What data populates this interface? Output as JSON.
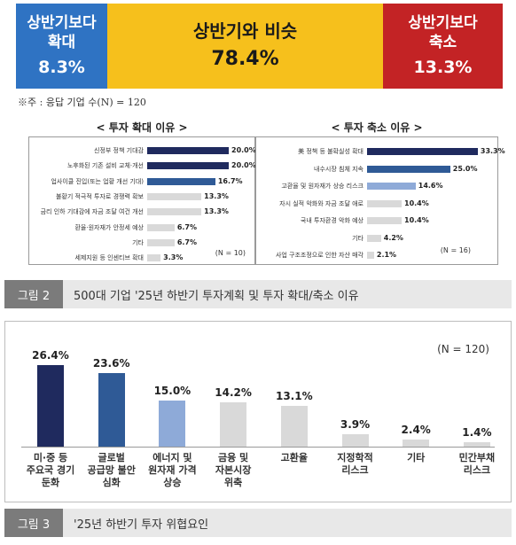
{
  "summary": {
    "segments": [
      {
        "label": "상반기보다\n확대",
        "value": "8.3%",
        "color": "#2f73c3"
      },
      {
        "label": "상반기와 비슷",
        "value": "78.4%",
        "color": "#f6c01c"
      },
      {
        "label": "상반기보다\n축소",
        "value": "13.3%",
        "color": "#c32325"
      }
    ],
    "note": "※주 : 응답 기업 수(N) = 120"
  },
  "chart_data": [
    {
      "type": "bar",
      "orientation": "horizontal",
      "title": "< 투자 확대 이유 >",
      "categories": [
        "신정부 정책 기대감",
        "노후화된 기존 설비 교체·개선",
        "업사이클 진입(또는 업황 개선 기대)",
        "불황기 적극적 투자로 경쟁력 확보",
        "금리 인하 기대감에 자금 조달 여건 개선",
        "환율·원자재가 안정세 예상",
        "기타",
        "세제지원 등 인센티브 확대"
      ],
      "values": [
        20.0,
        20.0,
        16.7,
        13.3,
        13.3,
        6.7,
        6.7,
        3.3
      ],
      "value_labels": [
        "20.0%",
        "20.0%",
        "16.7%",
        "13.3%",
        "13.3%",
        "6.7%",
        "6.7%",
        "3.3%"
      ],
      "colors": [
        "#1f2a5e",
        "#1f2a5e",
        "#2f5a96",
        "#d9d9d9",
        "#d9d9d9",
        "#d9d9d9",
        "#d9d9d9",
        "#d9d9d9"
      ],
      "n_label": "(N = 10)"
    },
    {
      "type": "bar",
      "orientation": "horizontal",
      "title": "< 투자 축소 이유 >",
      "categories": [
        "美 정책 등 불확실성 확대",
        "내수시장 침체 지속",
        "고환율 및 원자재가 상승 리스크",
        "자시 실적 악화와 자금 조달 애로",
        "국내 투자환경 악화 예상",
        "기타",
        "사업 구조조정으로 인한 자산 매각"
      ],
      "values": [
        33.3,
        25.0,
        14.6,
        10.4,
        10.4,
        4.2,
        2.1
      ],
      "value_labels": [
        "33.3%",
        "25.0%",
        "14.6%",
        "10.4%",
        "10.4%",
        "4.2%",
        "2.1%"
      ],
      "colors": [
        "#1f2a5e",
        "#2f5a96",
        "#8eaad8",
        "#d9d9d9",
        "#d9d9d9",
        "#d9d9d9",
        "#d9d9d9"
      ],
      "n_label": "(N = 16)"
    },
    {
      "type": "bar",
      "title": "",
      "categories": [
        "미·중 등\n주요국 경기\n둔화",
        "글로벌\n공급망 불안\n심화",
        "에너지 및\n원자재 가격\n상승",
        "금융 및\n자본시장\n위축",
        "고환율",
        "지정학적\n리스크",
        "기타",
        "민간부채\n리스크"
      ],
      "values": [
        26.4,
        23.6,
        15.0,
        14.2,
        13.1,
        3.9,
        2.4,
        1.4
      ],
      "value_labels": [
        "26.4%",
        "23.6%",
        "15.0%",
        "14.2%",
        "13.1%",
        "3.9%",
        "2.4%",
        "1.4%"
      ],
      "colors": [
        "#1f2a5e",
        "#2f5a96",
        "#8eaad8",
        "#d9d9d9",
        "#d9d9d9",
        "#d9d9d9",
        "#d9d9d9",
        "#d9d9d9"
      ],
      "n_label": "(N = 120)"
    }
  ],
  "captions": {
    "fig2_tag": "그림 2",
    "fig2_text": "500대 기업 '25년 하반기 투자계획 및 투자 확대/축소 이유",
    "fig3_tag": "그림 3",
    "fig3_text": "'25년 하반기 투자 위협요인"
  }
}
